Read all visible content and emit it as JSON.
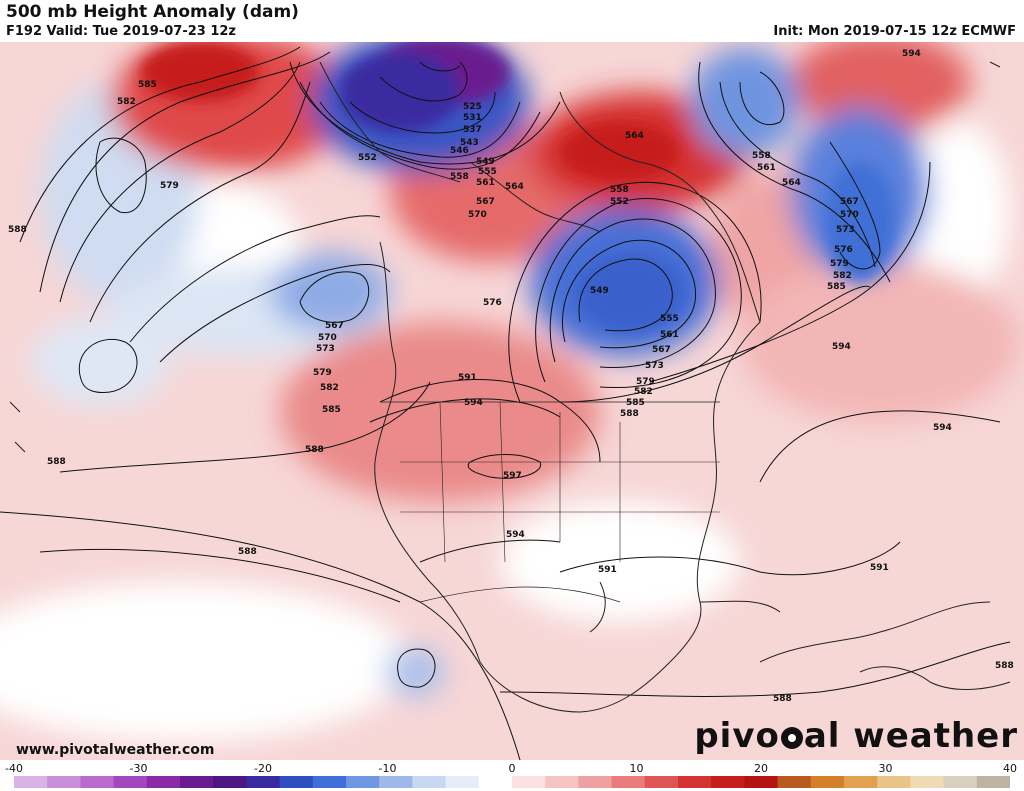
{
  "header": {
    "title": "500 mb Height Anomaly (dam)",
    "valid": "F192 Valid: Tue 2019-07-23 12z",
    "init": "Init: Mon 2019-07-15 12z ECMWF"
  },
  "footer": {
    "url": "www.pivotalweather.com",
    "logo_left": "pivo",
    "logo_right": "al weather"
  },
  "colorbar": {
    "ticks": [
      "-40",
      "-30",
      "-20",
      "-10",
      "0",
      "10",
      "20",
      "30",
      "40"
    ],
    "min": -40,
    "max": 40,
    "colors": [
      "#d9b3e6",
      "#c98fd9",
      "#b86bcc",
      "#a347bf",
      "#8a2aa8",
      "#6a1b8f",
      "#4d1680",
      "#3a2aa0",
      "#2f4fc0",
      "#3f6fd6",
      "#6f96e0",
      "#9fb8ea",
      "#c9d8f2",
      "#e6edf8",
      "#ffffff",
      "#fbe1e1",
      "#f6c3c3",
      "#efa0a0",
      "#e87b7b",
      "#de5555",
      "#d43333",
      "#c61d1d",
      "#b41414",
      "#b85a20",
      "#d4802a",
      "#e3a050",
      "#e9c486",
      "#eedbb4",
      "#d8d0c0",
      "#bdb3a3"
    ]
  },
  "contour_labels": [
    {
      "text": "585"
    },
    {
      "text": "582"
    },
    {
      "text": "579"
    },
    {
      "text": "588"
    },
    {
      "text": "594"
    },
    {
      "text": "525"
    },
    {
      "text": "531"
    },
    {
      "text": "537"
    },
    {
      "text": "543"
    },
    {
      "text": "546"
    },
    {
      "text": "549"
    },
    {
      "text": "552"
    },
    {
      "text": "555"
    },
    {
      "text": "558"
    },
    {
      "text": "561"
    },
    {
      "text": "564"
    },
    {
      "text": "567"
    },
    {
      "text": "570"
    },
    {
      "text": "573"
    },
    {
      "text": "576"
    },
    {
      "text": "591"
    },
    {
      "text": "597"
    }
  ]
}
